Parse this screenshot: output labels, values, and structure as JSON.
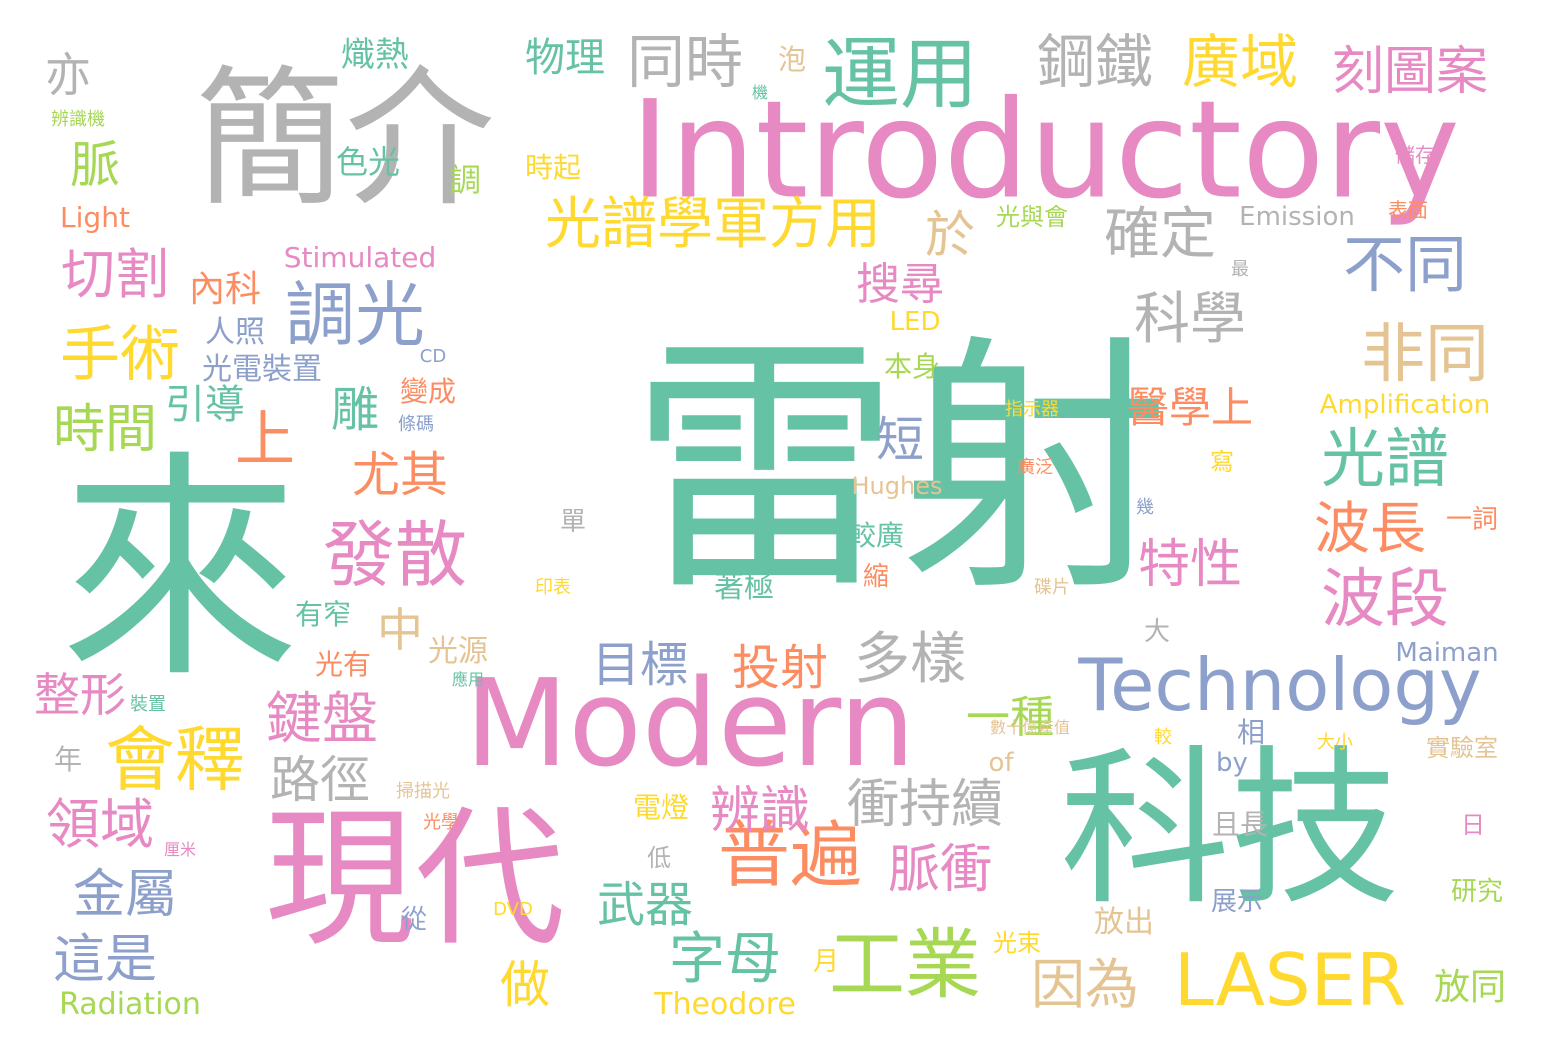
{
  "colors": {
    "green": "#66c2a5",
    "orange": "#fc8d62",
    "blue": "#8da0cb",
    "pink": "#e78ac3",
    "lime": "#a6d854",
    "yellow": "#ffd92f",
    "tan": "#e5c494",
    "gray": "#b3b3b3"
  },
  "words": [
    {
      "text": "雷射",
      "color": "green"
    },
    {
      "text": "來",
      "color": "green"
    },
    {
      "text": "科技",
      "color": "green"
    },
    {
      "text": "簡介",
      "color": "gray"
    },
    {
      "text": "Introductory",
      "color": "pink"
    },
    {
      "text": "現代",
      "color": "pink"
    },
    {
      "text": "Modern",
      "color": "pink"
    },
    {
      "text": "Technology",
      "color": "blue"
    },
    {
      "text": "運用",
      "color": "green"
    },
    {
      "text": "光譜學軍方用",
      "color": "yellow"
    },
    {
      "text": "工業",
      "color": "lime"
    },
    {
      "text": "LASER",
      "color": "yellow"
    },
    {
      "text": "普遍",
      "color": "orange"
    },
    {
      "text": "發散",
      "color": "pink"
    },
    {
      "text": "會釋",
      "color": "yellow"
    },
    {
      "text": "調光",
      "color": "blue"
    },
    {
      "text": "光譜",
      "color": "green"
    },
    {
      "text": "波段",
      "color": "pink"
    },
    {
      "text": "波長",
      "color": "orange"
    },
    {
      "text": "非同",
      "color": "tan"
    },
    {
      "text": "不同",
      "color": "blue"
    },
    {
      "text": "科學",
      "color": "gray"
    },
    {
      "text": "確定",
      "color": "gray"
    },
    {
      "text": "鋼鐵",
      "color": "gray"
    },
    {
      "text": "同時",
      "color": "gray"
    },
    {
      "text": "廣域",
      "color": "yellow"
    },
    {
      "text": "刻圖案",
      "color": "pink"
    },
    {
      "text": "物理",
      "color": "green"
    },
    {
      "text": "熾熱",
      "color": "green"
    },
    {
      "text": "手術",
      "color": "yellow"
    },
    {
      "text": "切割",
      "color": "pink"
    },
    {
      "text": "時間",
      "color": "lime"
    },
    {
      "text": "上",
      "color": "orange"
    },
    {
      "text": "尤其",
      "color": "orange"
    },
    {
      "text": "引導",
      "color": "green"
    },
    {
      "text": "雕",
      "color": "green"
    },
    {
      "text": "短",
      "color": "blue"
    },
    {
      "text": "搜尋",
      "color": "pink"
    },
    {
      "text": "特性",
      "color": "pink"
    },
    {
      "text": "脈衝",
      "color": "pink"
    },
    {
      "text": "衝持續",
      "color": "gray"
    },
    {
      "text": "多樣",
      "color": "gray"
    },
    {
      "text": "投射",
      "color": "orange"
    },
    {
      "text": "目標",
      "color": "blue"
    },
    {
      "text": "一種",
      "color": "lime"
    },
    {
      "text": "鍵盤",
      "color": "pink"
    },
    {
      "text": "路徑",
      "color": "gray"
    },
    {
      "text": "辨識",
      "color": "pink"
    },
    {
      "text": "領域",
      "color": "pink"
    },
    {
      "text": "金屬",
      "color": "blue"
    },
    {
      "text": "這是",
      "color": "blue"
    },
    {
      "text": "字母",
      "color": "green"
    },
    {
      "text": "武器",
      "color": "green"
    },
    {
      "text": "做",
      "color": "yellow"
    },
    {
      "text": "因為",
      "color": "tan"
    },
    {
      "text": "整形",
      "color": "pink"
    },
    {
      "text": "醫學上",
      "color": "orange"
    },
    {
      "text": "亦",
      "color": "gray"
    },
    {
      "text": "脈",
      "color": "lime"
    },
    {
      "text": "於",
      "color": "tan"
    },
    {
      "text": "中",
      "color": "tan"
    },
    {
      "text": "內科",
      "color": "orange"
    },
    {
      "text": "光電裝置",
      "color": "blue"
    },
    {
      "text": "人照",
      "color": "blue"
    },
    {
      "text": "色光",
      "color": "green"
    },
    {
      "text": "時起",
      "color": "yellow"
    },
    {
      "text": "調",
      "color": "lime"
    },
    {
      "text": "泡",
      "color": "tan"
    },
    {
      "text": "機",
      "color": "green"
    },
    {
      "text": "儲存",
      "color": "pink"
    },
    {
      "text": "表面",
      "color": "orange"
    },
    {
      "text": "最",
      "color": "gray"
    },
    {
      "text": "寫",
      "color": "yellow"
    },
    {
      "text": "幾",
      "color": "blue"
    },
    {
      "text": "廣泛",
      "color": "orange"
    },
    {
      "text": "指示器",
      "color": "yellow"
    },
    {
      "text": "光與會",
      "color": "lime"
    },
    {
      "text": "Emission",
      "color": "gray"
    },
    {
      "text": "Light",
      "color": "orange"
    },
    {
      "text": "Stimulated",
      "color": "pink"
    },
    {
      "text": "辨識機",
      "color": "lime"
    },
    {
      "text": "LED",
      "color": "yellow"
    },
    {
      "text": "CD",
      "color": "blue"
    },
    {
      "text": "本身",
      "color": "lime"
    },
    {
      "text": "變成",
      "color": "orange"
    },
    {
      "text": "條碼",
      "color": "blue"
    },
    {
      "text": "Amplification",
      "color": "yellow"
    },
    {
      "text": "Hughes",
      "color": "tan"
    },
    {
      "text": "單",
      "color": "gray"
    },
    {
      "text": "較廣",
      "color": "green"
    },
    {
      "text": "縮",
      "color": "orange"
    },
    {
      "text": "著極",
      "color": "green"
    },
    {
      "text": "印表",
      "color": "yellow"
    },
    {
      "text": "碟片",
      "color": "tan"
    },
    {
      "text": "一詞",
      "color": "orange"
    },
    {
      "text": "大",
      "color": "gray"
    },
    {
      "text": "Maiman",
      "color": "blue"
    },
    {
      "text": "光源",
      "color": "tan"
    },
    {
      "text": "光有",
      "color": "orange"
    },
    {
      "text": "有窄",
      "color": "green"
    },
    {
      "text": "應用",
      "color": "green"
    },
    {
      "text": "裝置",
      "color": "green"
    },
    {
      "text": "年",
      "color": "gray"
    },
    {
      "text": "數十億產值",
      "color": "tan"
    },
    {
      "text": "相",
      "color": "blue"
    },
    {
      "text": "較",
      "color": "yellow"
    },
    {
      "text": "大小",
      "color": "yellow"
    },
    {
      "text": "實驗室",
      "color": "tan"
    },
    {
      "text": "of",
      "color": "tan"
    },
    {
      "text": "by",
      "color": "blue"
    },
    {
      "text": "掃描光",
      "color": "tan"
    },
    {
      "text": "光學",
      "color": "orange"
    },
    {
      "text": "電燈",
      "color": "yellow"
    },
    {
      "text": "且長",
      "color": "gray"
    },
    {
      "text": "日",
      "color": "pink"
    },
    {
      "text": "低",
      "color": "gray"
    },
    {
      "text": "厘米",
      "color": "pink"
    },
    {
      "text": "展示",
      "color": "blue"
    },
    {
      "text": "研究",
      "color": "lime"
    },
    {
      "text": "從",
      "color": "blue"
    },
    {
      "text": "DVD",
      "color": "yellow"
    },
    {
      "text": "放出",
      "color": "tan"
    },
    {
      "text": "光束",
      "color": "yellow"
    },
    {
      "text": "月",
      "color": "yellow"
    },
    {
      "text": "放同",
      "color": "lime"
    },
    {
      "text": "Radiation",
      "color": "lime"
    },
    {
      "text": "Theodore",
      "color": "yellow"
    }
  ]
}
